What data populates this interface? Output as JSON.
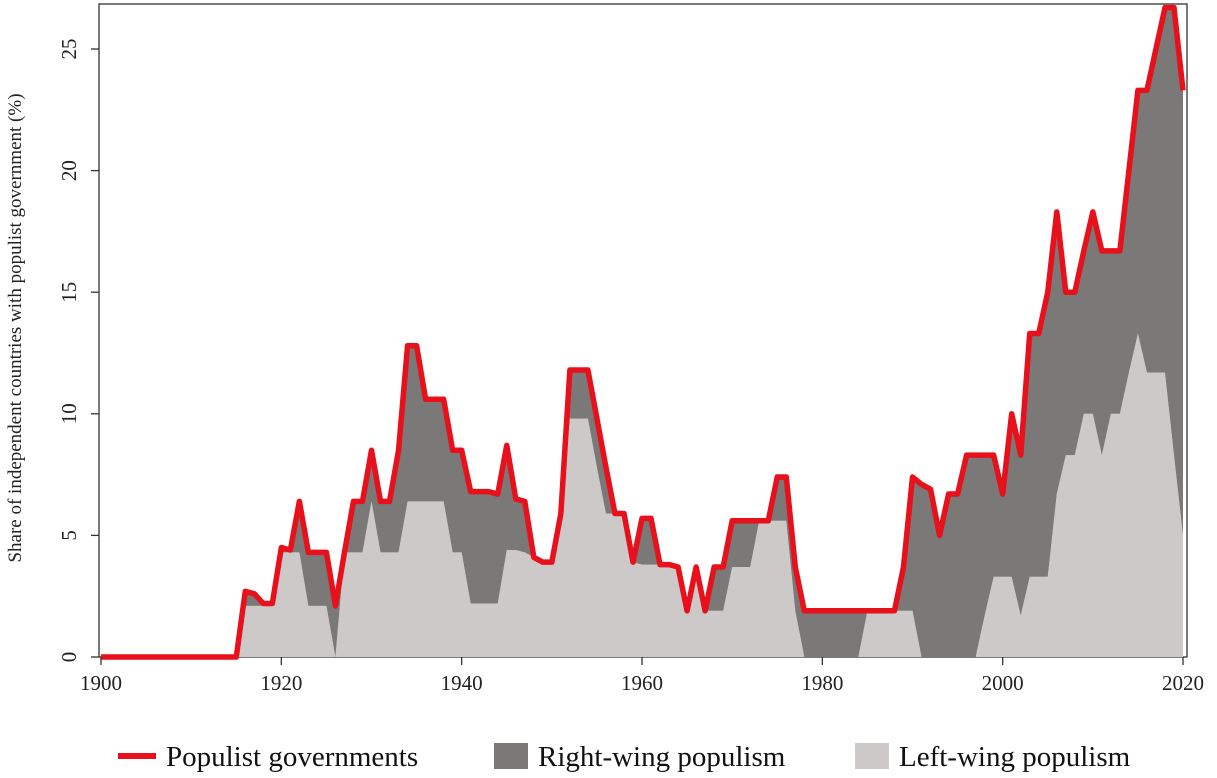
{
  "chart_data": {
    "type": "area",
    "title": "",
    "xlabel": "",
    "ylabel": "Share of independent countries with populist government (%)",
    "xlim": [
      1900,
      2020
    ],
    "ylim": [
      0,
      27
    ],
    "xticks": [
      1900,
      1920,
      1940,
      1960,
      1980,
      2000,
      2020
    ],
    "yticks": [
      0,
      5,
      10,
      15,
      20,
      25
    ],
    "x_tick_labels": [
      "1900",
      "1920",
      "1940",
      "1960",
      "1980",
      "2000",
      "2020"
    ],
    "y_tick_labels": [
      "0",
      "5",
      "10",
      "15",
      "20",
      "25"
    ],
    "grid": false,
    "legend_position": "bottom",
    "colors": {
      "populist": "#e8101a",
      "right": "#7b7878",
      "left": "#ccc9c8"
    },
    "legend": [
      {
        "key": "populist",
        "label": "Populist governments",
        "kind": "line"
      },
      {
        "key": "right",
        "label": "Right-wing populism",
        "kind": "area"
      },
      {
        "key": "left",
        "label": "Left-wing populism",
        "kind": "area"
      }
    ],
    "x": [
      1900,
      1901,
      1902,
      1903,
      1904,
      1905,
      1906,
      1907,
      1908,
      1909,
      1910,
      1911,
      1912,
      1913,
      1914,
      1915,
      1916,
      1917,
      1918,
      1919,
      1920,
      1921,
      1922,
      1923,
      1924,
      1925,
      1926,
      1927,
      1928,
      1929,
      1930,
      1931,
      1932,
      1933,
      1934,
      1935,
      1936,
      1937,
      1938,
      1939,
      1940,
      1941,
      1942,
      1943,
      1944,
      1945,
      1946,
      1947,
      1948,
      1949,
      1950,
      1951,
      1952,
      1953,
      1954,
      1955,
      1956,
      1957,
      1958,
      1959,
      1960,
      1961,
      1962,
      1963,
      1964,
      1965,
      1966,
      1967,
      1968,
      1969,
      1970,
      1971,
      1972,
      1973,
      1974,
      1975,
      1976,
      1977,
      1978,
      1979,
      1980,
      1981,
      1982,
      1983,
      1984,
      1985,
      1986,
      1987,
      1988,
      1989,
      1990,
      1991,
      1992,
      1993,
      1994,
      1995,
      1996,
      1997,
      1998,
      1999,
      2000,
      2001,
      2002,
      2003,
      2004,
      2005,
      2006,
      2007,
      2008,
      2009,
      2010,
      2011,
      2012,
      2013,
      2014,
      2015,
      2016,
      2017,
      2018,
      2019,
      2020
    ],
    "series": [
      {
        "key": "populist",
        "name": "Populist governments",
        "values": [
          0,
          0,
          0,
          0,
          0,
          0,
          0,
          0,
          0,
          0,
          0,
          0,
          0,
          0,
          0,
          0,
          2.7,
          2.6,
          2.2,
          2.2,
          4.5,
          4.4,
          6.4,
          4.3,
          4.3,
          4.3,
          2.1,
          4.3,
          6.4,
          6.4,
          8.5,
          6.4,
          6.4,
          8.5,
          12.8,
          12.8,
          10.6,
          10.6,
          10.6,
          8.5,
          8.5,
          6.8,
          6.8,
          6.8,
          6.7,
          8.7,
          6.5,
          6.4,
          4.1,
          3.9,
          3.9,
          5.9,
          11.8,
          11.8,
          11.8,
          9.8,
          7.8,
          5.9,
          5.9,
          3.9,
          5.7,
          5.7,
          3.8,
          3.8,
          3.7,
          1.9,
          3.7,
          1.9,
          3.7,
          3.7,
          5.6,
          5.6,
          5.6,
          5.6,
          5.6,
          7.4,
          7.4,
          3.7,
          1.9,
          1.9,
          1.9,
          1.9,
          1.9,
          1.9,
          1.9,
          1.9,
          1.9,
          1.9,
          1.9,
          3.7,
          7.4,
          7.1,
          6.9,
          5.0,
          6.7,
          6.7,
          8.3,
          8.3,
          8.3,
          8.3,
          6.7,
          10.0,
          8.3,
          13.3,
          13.3,
          15.0,
          18.3,
          15.0,
          15.0,
          16.7,
          18.3,
          16.7,
          16.7,
          16.7,
          20.0,
          23.3,
          23.3,
          25.0,
          26.7,
          26.7,
          23.3
        ]
      },
      {
        "key": "left",
        "name": "Left-wing populism",
        "values": [
          0,
          0,
          0,
          0,
          0,
          0,
          0,
          0,
          0,
          0,
          0,
          0,
          0,
          0,
          0,
          0,
          2.1,
          2.1,
          2.1,
          2.1,
          4.3,
          4.3,
          4.3,
          2.1,
          2.1,
          2.1,
          0,
          4.3,
          4.3,
          4.3,
          6.4,
          4.3,
          4.3,
          4.3,
          6.4,
          6.4,
          6.4,
          6.4,
          6.4,
          4.3,
          4.3,
          2.2,
          2.2,
          2.2,
          2.2,
          4.4,
          4.4,
          4.3,
          4.1,
          3.9,
          3.9,
          5.9,
          9.8,
          9.8,
          9.8,
          7.8,
          5.9,
          5.9,
          5.9,
          3.9,
          3.8,
          3.8,
          3.8,
          3.8,
          3.7,
          1.9,
          3.7,
          1.9,
          1.9,
          1.9,
          3.7,
          3.7,
          3.7,
          5.6,
          5.6,
          5.6,
          5.6,
          1.9,
          0,
          0,
          0,
          0,
          0,
          0,
          0,
          1.9,
          1.9,
          1.9,
          1.9,
          1.9,
          1.9,
          0,
          0,
          0,
          0,
          0,
          0,
          0,
          1.7,
          3.3,
          3.3,
          3.3,
          1.7,
          3.3,
          3.3,
          3.3,
          6.7,
          8.3,
          8.3,
          10.0,
          10.0,
          8.3,
          10.0,
          10.0,
          11.7,
          13.3,
          11.7,
          11.7,
          11.7,
          8.3,
          5.0
        ]
      },
      {
        "key": "right",
        "name": "Right-wing populism",
        "values": [
          0,
          0,
          0,
          0,
          0,
          0,
          0,
          0,
          0,
          0,
          0,
          0,
          0,
          0,
          0,
          0,
          0.6,
          0.5,
          0.1,
          0.1,
          0.2,
          0.1,
          2.1,
          2.2,
          2.2,
          2.2,
          2.1,
          0,
          2.1,
          2.1,
          2.1,
          2.1,
          2.1,
          4.2,
          6.4,
          6.4,
          4.2,
          4.2,
          4.2,
          4.2,
          4.2,
          4.6,
          4.6,
          4.6,
          4.5,
          4.3,
          2.1,
          2.1,
          0,
          0,
          0,
          0,
          2.0,
          2.0,
          2.0,
          2.0,
          1.9,
          0,
          0,
          0,
          1.9,
          1.9,
          0,
          0,
          0,
          0,
          0,
          0,
          1.8,
          1.8,
          1.9,
          1.9,
          1.9,
          0,
          0,
          1.8,
          1.8,
          1.8,
          1.9,
          1.9,
          1.9,
          1.9,
          1.9,
          1.9,
          1.9,
          0,
          0,
          0,
          0,
          1.8,
          5.5,
          7.1,
          6.9,
          5.0,
          6.7,
          6.7,
          8.3,
          8.3,
          6.6,
          5.0,
          3.4,
          6.7,
          6.6,
          10.0,
          10.0,
          11.7,
          11.6,
          6.7,
          6.7,
          6.7,
          8.3,
          8.4,
          6.7,
          6.7,
          8.3,
          10.0,
          11.6,
          13.3,
          15.0,
          18.4,
          18.3
        ]
      }
    ]
  }
}
